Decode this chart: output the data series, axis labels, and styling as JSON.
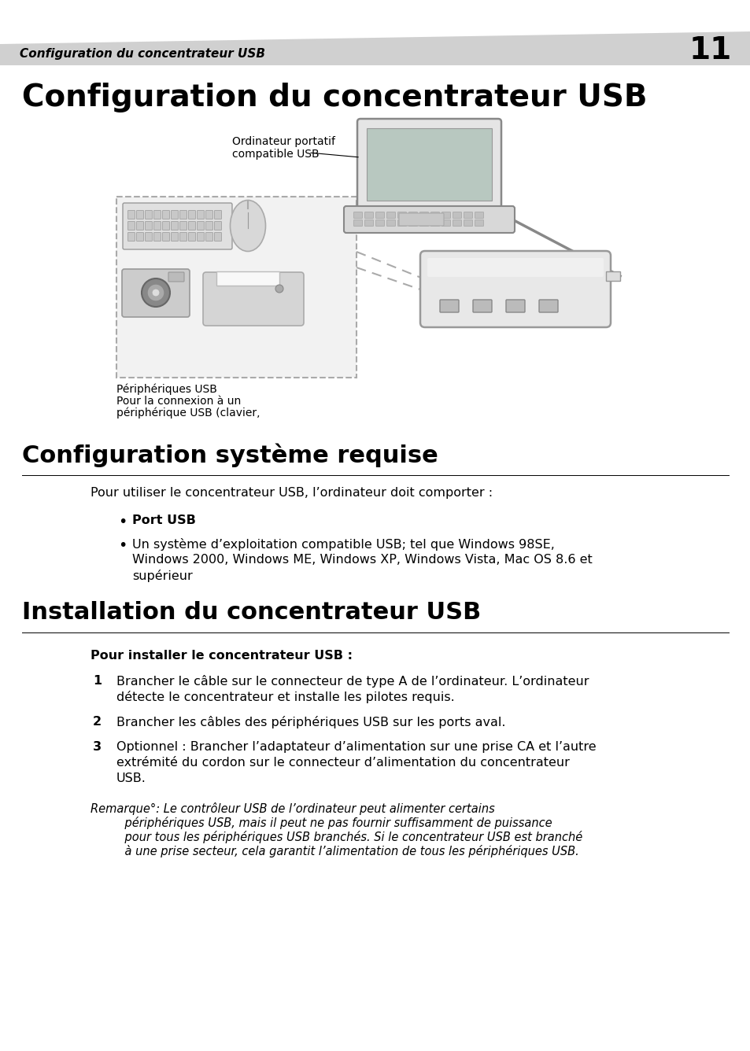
{
  "header_text": "Configuration du concentrateur USB",
  "header_number": "11",
  "page_bg": "#ffffff",
  "main_title": "Configuration du concentrateur USB",
  "section1_title": "Configuration système requise",
  "section2_title": "Installation du concentrateur USB",
  "intro_text": "Pour utiliser le concentrateur USB, l’ordinateur doit comporter :",
  "bullet1": "Port USB",
  "bullet2_line1": "Un système d’exploitation compatible USB; tel que Windows 98SE,",
  "bullet2_line2": "Windows 2000, Windows ME, Windows XP, Windows Vista, Mac OS 8.6 et",
  "bullet2_line3": "supérieur",
  "install_bold": "Pour installer le concentrateur USB :",
  "step1_num": "1",
  "step1_line1": "Brancher le câble sur le connecteur de type A de l’ordinateur. L’ordinateur",
  "step1_line2": "détecte le concentrateur et installe les pilotes requis.",
  "step2_num": "2",
  "step2": "Brancher les câbles des périphériques USB sur les ports aval.",
  "step3_num": "3",
  "step3_line1": "Optionnel : Brancher l’adaptateur d’alimentation sur une prise CA et l’autre",
  "step3_line2": "extrémité du cordon sur le connecteur d’alimentation du concentrateur",
  "step3_line3": "USB.",
  "note_line1": "Remarque°: Le contrôleur USB de l’ordinateur peut alimenter certains",
  "note_line2": "    périphériques USB, mais il peut ne pas fournir suffisamment de puissance",
  "note_line3": "    pour tous les périphériques USB branchés. Si le concentrateur USB est branché",
  "note_line4": "    à une prise secteur, cela garantit l’alimentation de tous les périphériques USB.",
  "img_label1_line1": "Ordinateur portatif",
  "img_label1_line2": "compatible USB",
  "img_label2_line1": "Périphériques USB",
  "img_label2_line2": "Pour la connexion à un",
  "img_label2_line3": "périphérique USB (clavier,"
}
